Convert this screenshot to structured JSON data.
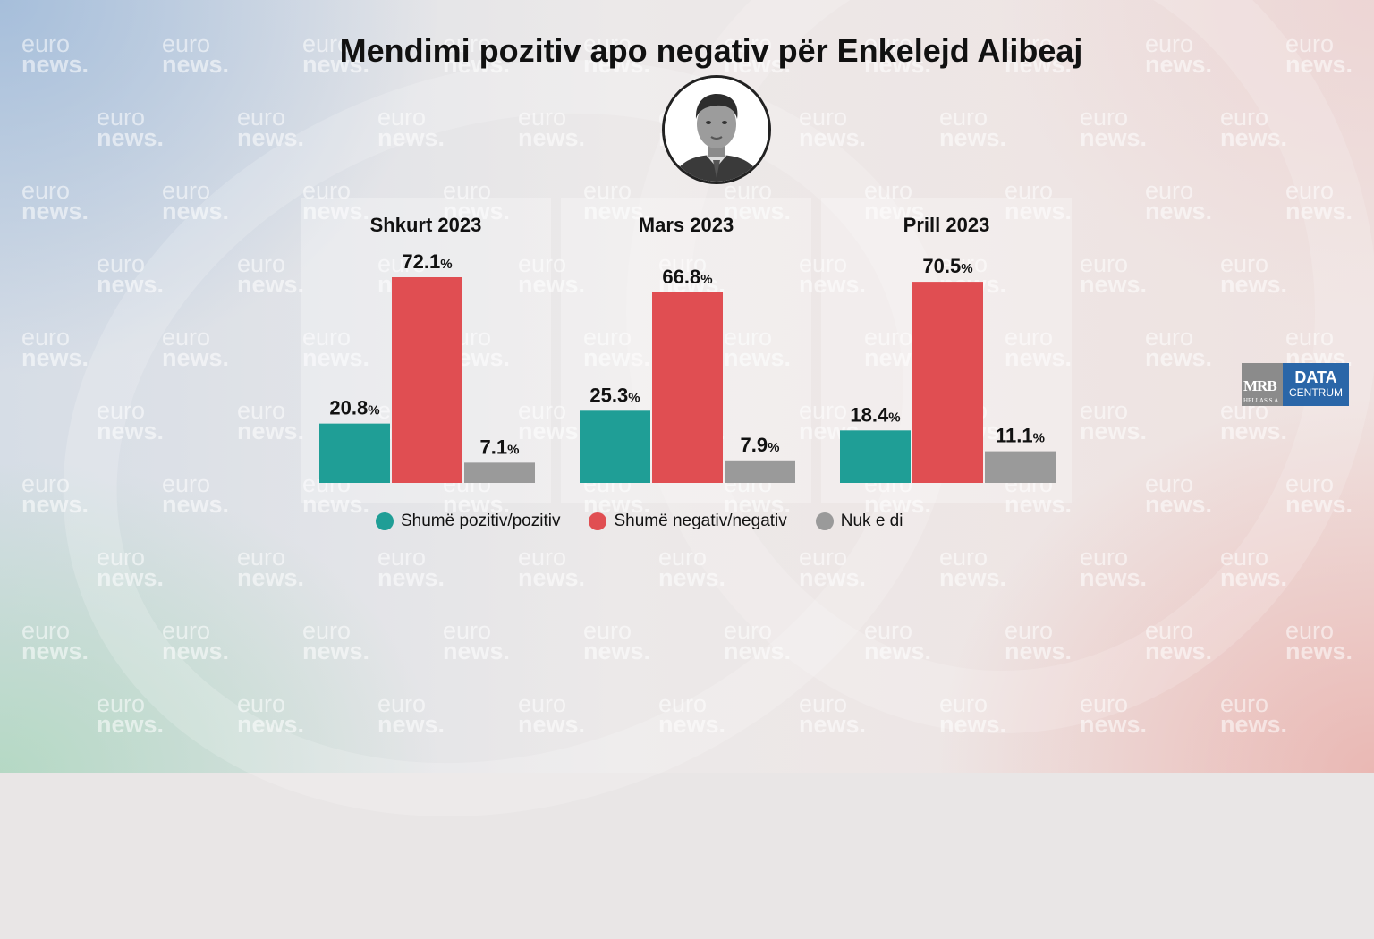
{
  "title": "Mendimi pozitiv apo negativ për Enkelejd Alibeaj",
  "watermark": {
    "line1": "euro",
    "line2": "news."
  },
  "logo": {
    "mrb": "MRB",
    "mrb_sub": "HELLAS S.A.",
    "data": "DATA",
    "centrum": "CENTRUM"
  },
  "legend": [
    {
      "label": "Shumë pozitiv/pozitiv",
      "color": "#1f9e96"
    },
    {
      "label": "Shumë negativ/negativ",
      "color": "#e04e52"
    },
    {
      "label": "Nuk e di",
      "color": "#9a9a9a"
    }
  ],
  "chart_data": {
    "type": "bar",
    "unit": "%",
    "ylim": [
      0,
      80
    ],
    "panels": [
      {
        "title": "Shkurt 2023",
        "values": [
          20.8,
          72.1,
          7.1
        ],
        "labels": [
          "20.8",
          "72.1",
          "7.1"
        ]
      },
      {
        "title": "Mars 2023",
        "values": [
          25.3,
          66.8,
          7.9
        ],
        "labels": [
          "25.3",
          "66.8",
          "7.9"
        ]
      },
      {
        "title": "Prill 2023",
        "values": [
          18.4,
          70.5,
          11.1
        ],
        "labels": [
          "18.4",
          "70.5",
          "11.1"
        ]
      }
    ],
    "series": [
      {
        "name": "Shumë pozitiv/pozitiv",
        "color": "#1f9e96"
      },
      {
        "name": "Shumë negativ/negativ",
        "color": "#e04e52"
      },
      {
        "name": "Nuk e di",
        "color": "#9a9a9a"
      }
    ]
  }
}
